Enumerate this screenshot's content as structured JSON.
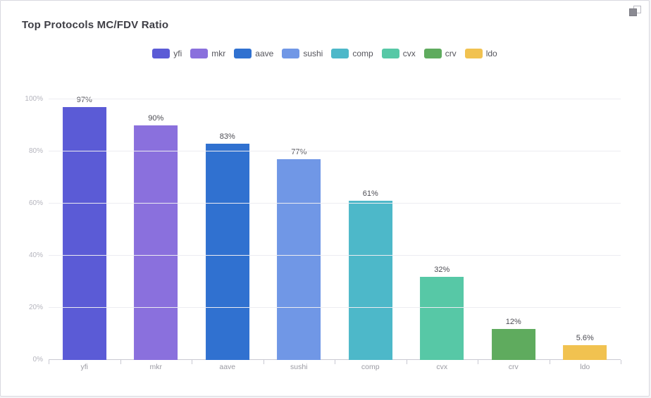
{
  "header": {
    "title": "Top Protocols MC/FDV Ratio"
  },
  "icons": {
    "copy_icon": "copy-icon"
  },
  "chart_data": {
    "type": "bar",
    "title": "Top Protocols MC/FDV Ratio",
    "categories": [
      "yfi",
      "mkr",
      "aave",
      "sushi",
      "comp",
      "cvx",
      "crv",
      "ldo"
    ],
    "values": [
      97,
      90,
      83,
      77,
      61,
      32,
      12,
      5.6
    ],
    "value_labels": [
      "97%",
      "90%",
      "83%",
      "77%",
      "61%",
      "32%",
      "12%",
      "5.6%"
    ],
    "colors": [
      "#5b5bd6",
      "#8a70dd",
      "#3071d0",
      "#7097e6",
      "#4db8c9",
      "#57c8a6",
      "#5fab5e",
      "#f1c250"
    ],
    "legend": [
      "yfi",
      "mkr",
      "aave",
      "sushi",
      "comp",
      "cvx",
      "crv",
      "ldo"
    ],
    "legend_position": "top-center",
    "xlabel": "",
    "ylabel": "",
    "ylim": [
      0,
      100
    ],
    "y_ticks": [
      "0%",
      "20%",
      "40%",
      "60%",
      "80%",
      "100%"
    ],
    "y_tick_values": [
      0,
      20,
      40,
      60,
      80,
      100
    ],
    "grid": true
  }
}
